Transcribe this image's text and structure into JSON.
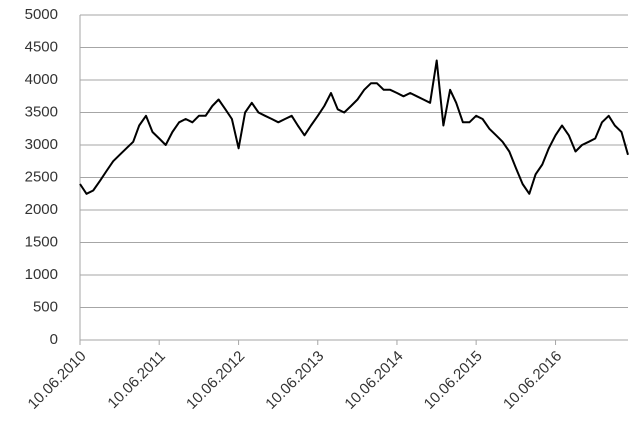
{
  "chart_data": {
    "type": "line",
    "x": [
      "10.06.2010",
      "10.07.2010",
      "10.08.2010",
      "10.09.2010",
      "10.10.2010",
      "10.11.2010",
      "10.12.2010",
      "10.01.2011",
      "10.02.2011",
      "10.03.2011",
      "10.04.2011",
      "10.05.2011",
      "10.06.2011",
      "10.07.2011",
      "10.08.2011",
      "10.09.2011",
      "10.10.2011",
      "10.11.2011",
      "10.12.2011",
      "10.01.2012",
      "10.02.2012",
      "10.03.2012",
      "10.04.2012",
      "10.05.2012",
      "10.06.2012",
      "10.07.2012",
      "10.08.2012",
      "10.09.2012",
      "10.10.2012",
      "10.11.2012",
      "10.12.2012",
      "10.01.2013",
      "10.02.2013",
      "10.03.2013",
      "10.04.2013",
      "10.05.2013",
      "10.06.2013",
      "10.07.2013",
      "10.08.2013",
      "10.09.2013",
      "10.10.2013",
      "10.11.2013",
      "10.12.2013",
      "10.01.2014",
      "10.02.2014",
      "10.03.2014",
      "10.04.2014",
      "10.05.2014",
      "10.06.2014",
      "10.07.2014",
      "10.08.2014",
      "10.09.2014",
      "10.10.2014",
      "10.11.2014",
      "10.12.2014",
      "10.01.2015",
      "10.02.2015",
      "10.03.2015",
      "10.04.2015",
      "10.05.2015",
      "10.06.2015",
      "10.07.2015",
      "10.08.2015",
      "10.09.2015",
      "10.10.2015",
      "10.11.2015",
      "10.12.2015",
      "10.01.2016",
      "10.02.2016",
      "10.03.2016",
      "10.04.2016",
      "10.05.2016",
      "10.06.2016",
      "10.07.2016",
      "10.08.2016",
      "10.09.2016",
      "10.10.2016",
      "10.11.2016",
      "10.12.2016",
      "10.01.2017",
      "10.02.2017",
      "10.03.2017",
      "10.04.2017",
      "10.05.2017"
    ],
    "series": [
      {
        "color": "#000000",
        "values": [
          2400,
          2250,
          2300,
          2450,
          2600,
          2750,
          2850,
          2950,
          3050,
          3300,
          3450,
          3200,
          3100,
          3000,
          3200,
          3350,
          3400,
          3350,
          3450,
          3450,
          3600,
          3700,
          3550,
          3400,
          2950,
          3500,
          3650,
          3500,
          3450,
          3400,
          3350,
          3400,
          3450,
          3300,
          3150,
          3300,
          3450,
          3600,
          3800,
          3550,
          3500,
          3600,
          3700,
          3850,
          3950,
          3950,
          3850,
          3850,
          3800,
          3750,
          3800,
          3750,
          3700,
          3650,
          4300,
          3300,
          3850,
          3650,
          3350,
          3350,
          3450,
          3400,
          3250,
          3150,
          3050,
          2900,
          2650,
          2400,
          2250,
          2550,
          2700,
          2950,
          3150,
          3300,
          3150,
          2900,
          3000,
          3050,
          3100,
          3350,
          3450,
          3300,
          3200,
          2850
        ]
      }
    ],
    "xlim": [
      "10.06.2010",
      "10.05.2017"
    ],
    "xticks": [
      "10.06.2010",
      "10.06.2011",
      "10.06.2012",
      "10.06.2013",
      "10.06.2014",
      "10.06.2015",
      "10.06.2016"
    ],
    "ylim": [
      0,
      5000
    ],
    "yticks": [
      0,
      500,
      1000,
      1500,
      2000,
      2500,
      3000,
      3500,
      4000,
      4500,
      5000
    ],
    "grid": true
  }
}
